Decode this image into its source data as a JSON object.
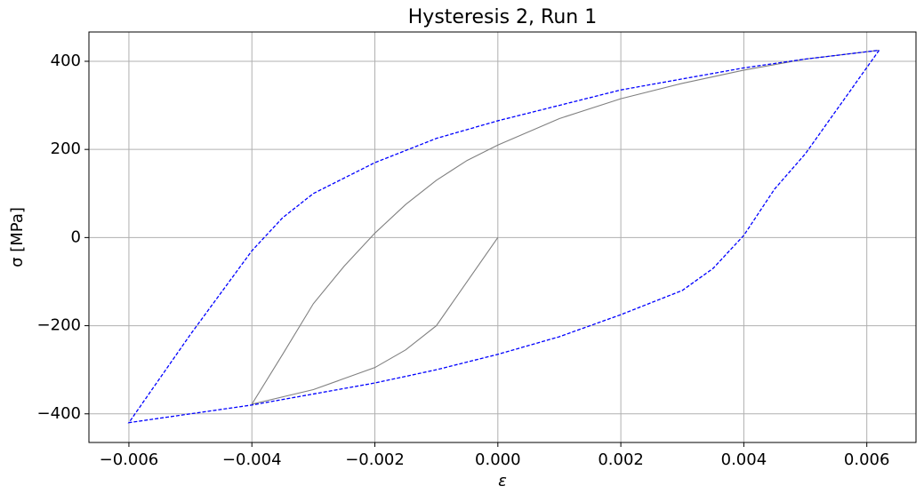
{
  "chart_data": {
    "type": "line",
    "title": "Hysteresis 2, Run 1",
    "x_label": "ε",
    "y_label": "σ [MPa]",
    "xlim": [
      -0.00665,
      0.0068
    ],
    "ylim": [
      -465,
      466.5
    ],
    "xticks": [
      {
        "value": -0.006,
        "label": "−0.006"
      },
      {
        "value": -0.004,
        "label": "−0.004"
      },
      {
        "value": -0.002,
        "label": "−0.002"
      },
      {
        "value": 0,
        "label": "0.000"
      },
      0.002,
      0.004,
      0.006
    ],
    "yticks": [
      {
        "value": -400,
        "label": "−400"
      },
      {
        "value": -200,
        "label": "−200"
      },
      0,
      200,
      400
    ],
    "grid": true,
    "series": [
      {
        "color": "#808080",
        "dash": false,
        "x": [
          0,
          -0.0005,
          -0.001,
          -0.0015,
          -0.002,
          -0.003,
          -0.004,
          -0.0035,
          -0.003,
          -0.0025,
          -0.002,
          -0.0015,
          -0.001,
          -0.0005,
          0,
          0.001,
          0.002,
          0.003,
          0.004,
          0.005,
          0.0062
        ],
        "values": [
          0,
          -100,
          -200,
          -255,
          -295,
          -345,
          -378,
          -265,
          -150,
          -65,
          10,
          75,
          130,
          175,
          210,
          270,
          315,
          350,
          380,
          405,
          425
        ]
      },
      {
        "color": "#0000ff",
        "dash": true,
        "x": [
          0.0062,
          0.005,
          0.0045,
          0.004,
          0.0035,
          0.003,
          0.002,
          0.001,
          0,
          -0.001,
          -0.002,
          -0.003,
          -0.004,
          -0.005,
          -0.006,
          -0.005,
          -0.004,
          -0.0035,
          -0.003,
          -0.002,
          -0.001,
          0,
          0.001,
          0.002,
          0.003,
          0.004,
          0.005,
          0.0062
        ],
        "values": [
          425,
          190,
          110,
          5,
          -70,
          -120,
          -175,
          -225,
          -265,
          -300,
          -330,
          -355,
          -380,
          -400,
          -420,
          -220,
          -30,
          45,
          100,
          170,
          225,
          265,
          300,
          335,
          360,
          385,
          405,
          425
        ]
      }
    ]
  }
}
